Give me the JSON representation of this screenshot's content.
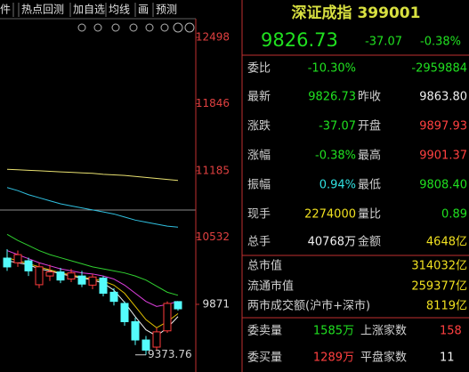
{
  "toolbar": {
    "tabs": [
      "件",
      "热点回测",
      "加自选",
      "均线",
      "画",
      "预测"
    ]
  },
  "chart": {
    "ylim": [
      9205,
      12866
    ],
    "yticks": [
      12498,
      11846,
      11185,
      10532,
      9871
    ],
    "tick_colors": [
      "#e04040",
      "#e04040",
      "#e04040",
      "#e04040",
      "#e0e0e0"
    ],
    "low_label": 9373.76,
    "up_color": "#ff3c3c",
    "down_color": "#54fcfc",
    "candles": [
      {
        "open": 10326,
        "high": 10414,
        "low": 10200,
        "close": 10239
      },
      {
        "open": 10280,
        "high": 10400,
        "low": 10240,
        "close": 10360
      },
      {
        "open": 10300,
        "high": 10330,
        "low": 10150,
        "close": 10200
      },
      {
        "open": 10064,
        "high": 10280,
        "low": 10030,
        "close": 10240
      },
      {
        "open": 10150,
        "high": 10260,
        "low": 10100,
        "close": 10190
      },
      {
        "open": 10190,
        "high": 10230,
        "low": 10080,
        "close": 10110
      },
      {
        "open": 10120,
        "high": 10220,
        "low": 10090,
        "close": 10180
      },
      {
        "open": 10150,
        "high": 10200,
        "low": 10040,
        "close": 10070
      },
      {
        "open": 10060,
        "high": 10170,
        "low": 10020,
        "close": 10140
      },
      {
        "open": 10130,
        "high": 10150,
        "low": 9950,
        "close": 9980
      },
      {
        "open": 9990,
        "high": 10030,
        "low": 9860,
        "close": 9900
      },
      {
        "open": 9880,
        "high": 9900,
        "low": 9660,
        "close": 9700
      },
      {
        "open": 9700,
        "high": 9740,
        "low": 9470,
        "close": 9520
      },
      {
        "open": 9520,
        "high": 9560,
        "low": 9374,
        "close": 9420
      },
      {
        "open": 9450,
        "high": 9640,
        "low": 9420,
        "close": 9600
      },
      {
        "open": 9610,
        "high": 9900,
        "low": 9590,
        "close": 9880
      },
      {
        "open": 9897.93,
        "high": 9901.37,
        "low": 9808.4,
        "close": 9826.73
      }
    ],
    "ma_lines": [
      {
        "color": "#e8e070",
        "values": [
          11200,
          11195,
          11190,
          11185,
          11180,
          11175,
          11170,
          11165,
          11160,
          11150,
          11145,
          11140,
          11130,
          11120,
          11110,
          11100,
          11090
        ]
      },
      {
        "color": "#30c0e0",
        "values": [
          11020,
          10990,
          10950,
          10920,
          10890,
          10860,
          10840,
          10820,
          10800,
          10780,
          10760,
          10730,
          10700,
          10680,
          10660,
          10640,
          10630
        ]
      },
      {
        "color": "#30d030",
        "values": [
          10560,
          10500,
          10450,
          10400,
          10360,
          10330,
          10300,
          10270,
          10240,
          10220,
          10200,
          10180,
          10150,
          10110,
          10050,
          9990,
          9960
        ]
      },
      {
        "color": "#e040e0",
        "values": [
          10400,
          10360,
          10320,
          10280,
          10250,
          10220,
          10200,
          10180,
          10170,
          10150,
          10120,
          10060,
          9980,
          9900,
          9850,
          9870,
          9900
        ]
      },
      {
        "color": "#e0c000",
        "values": [
          10330,
          10300,
          10270,
          10240,
          10210,
          10180,
          10160,
          10140,
          10120,
          10100,
          10060,
          9980,
          9850,
          9720,
          9640,
          9700,
          9780
        ]
      },
      {
        "color": "#f0f0f0",
        "values": [
          10300,
          10280,
          10260,
          10220,
          10200,
          10170,
          10150,
          10130,
          10110,
          10080,
          10010,
          9890,
          9750,
          9620,
          9560,
          9640,
          9750
        ]
      }
    ]
  },
  "quote": {
    "title": "深证成指 399001",
    "price": "9826.73",
    "change": "-37.07",
    "change_pct": "-0.38%",
    "rows": [
      {
        "label": "委比",
        "value": "-10.30%",
        "value_color": "#20e020",
        "value2": "-2959884",
        "value2_color": "#20e020"
      },
      {
        "label": "最新",
        "value": "9826.73",
        "value_color": "#20e020",
        "label2": "昨收",
        "value2": "9863.80",
        "value2_color": "#f0f0f0"
      },
      {
        "label": "涨跌",
        "value": "-37.07",
        "value_color": "#20e020",
        "label2": "开盘",
        "value2": "9897.93",
        "value2_color": "#ff4040"
      },
      {
        "label": "涨幅",
        "value": "-0.38%",
        "value_color": "#20e020",
        "label2": "最高",
        "value2": "9901.37",
        "value2_color": "#ff4040"
      },
      {
        "label": "振幅",
        "value": "0.94%",
        "value_color": "#30e0e0",
        "label2": "最低",
        "value2": "9808.40",
        "value2_color": "#20e020"
      },
      {
        "label": "现手",
        "value": "2274000",
        "value_color": "#f0e020",
        "label2": "量比",
        "value2": "0.89",
        "value2_color": "#20e020"
      },
      {
        "label": "总手",
        "value": "40768万",
        "value_color": "#f0f0f0",
        "label2": "金额",
        "value2": "4648亿",
        "value2_color": "#f0e020"
      }
    ],
    "market_rows": [
      {
        "label": "总市值",
        "value": "314032亿"
      },
      {
        "label": "流通市值",
        "value": "259377亿"
      },
      {
        "label": "两市成交额(沪市+深市)",
        "value": "8119亿"
      }
    ],
    "order_rows": [
      {
        "label": "委卖量",
        "value": "1585万",
        "label2": "上涨家数",
        "value2": "158"
      },
      {
        "label": "委买量",
        "value": "1289万",
        "label2": "平盘家数",
        "value2": "11"
      }
    ]
  }
}
